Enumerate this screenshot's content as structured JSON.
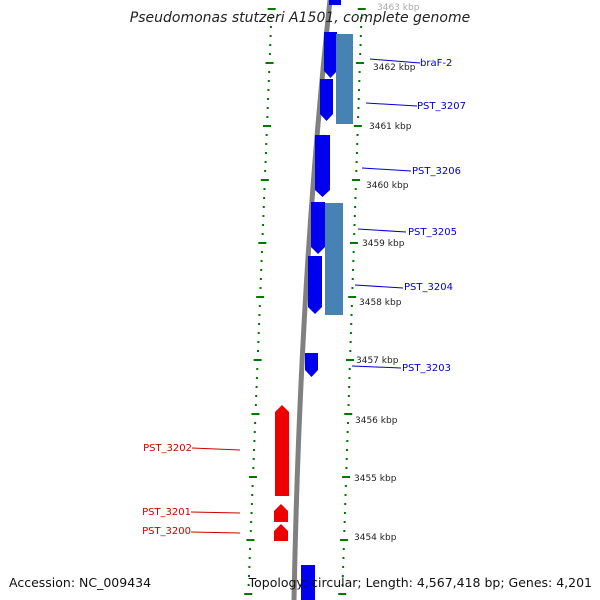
{
  "title": "Pseudomonas stutzeri A1501, complete genome",
  "footer": {
    "accession": "Accession: NC_009434",
    "topology": "Topology: circular; Length: 4,567,418 bp; Genes: 4,201"
  },
  "colors": {
    "forward_gene": "#0000ee",
    "reverse_gene": "#ee0000",
    "alt_gene": "#4682b4",
    "tick": "#007700",
    "backbone": "#808080",
    "label_forward": "#0000cc",
    "label_reverse": "#cc0000"
  },
  "coordinate_labels": [
    "3463 kbp",
    "3462 kbp",
    "3461 kbp",
    "3460 kbp",
    "3459 kbp",
    "3458 kbp",
    "3457 kbp",
    "3456 kbp",
    "3455 kbp",
    "3454 kbp"
  ],
  "genes": [
    {
      "name": "braF-2",
      "strand": "forward"
    },
    {
      "name": "PST_3207",
      "strand": "forward"
    },
    {
      "name": "PST_3206",
      "strand": "forward"
    },
    {
      "name": "PST_3205",
      "strand": "forward"
    },
    {
      "name": "PST_3204",
      "strand": "forward"
    },
    {
      "name": "PST_3203",
      "strand": "forward"
    },
    {
      "name": "PST_3202",
      "strand": "reverse"
    },
    {
      "name": "PST_3201",
      "strand": "reverse"
    },
    {
      "name": "PST_3200",
      "strand": "reverse"
    }
  ]
}
